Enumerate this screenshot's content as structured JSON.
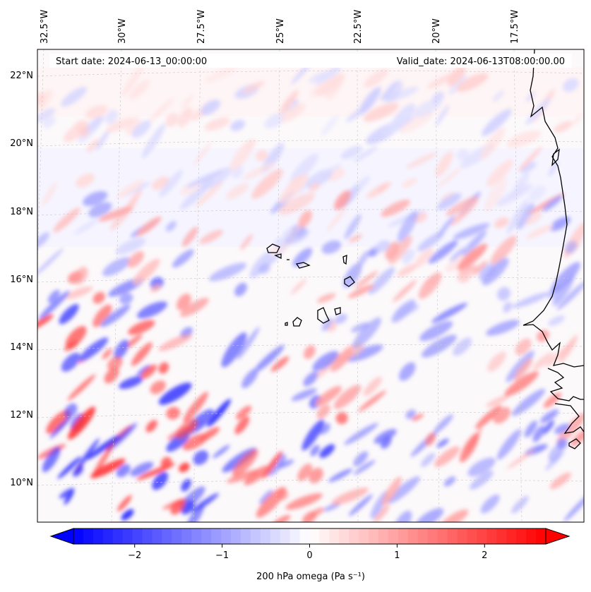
{
  "map": {
    "start_label": "Start date: 2024-06-13_00:00:00",
    "valid_label": "Valid_date: 2024-06-13T08:00:00.00",
    "lon_labels": [
      "32.5°W",
      "30°W",
      "27.5°W",
      "25°W",
      "22.5°W",
      "20°W",
      "17.5°W"
    ],
    "lat_labels": [
      "22°N",
      "20°N",
      "18°N",
      "16°N",
      "14°N",
      "12°N",
      "10°N"
    ],
    "field": "200 hPa omega",
    "projection": "conic (curved parallels)",
    "gridlines": true,
    "coastline_color": "#000000"
  },
  "colorbar": {
    "label": "200 hPa omega (Pa s⁻¹)",
    "ticks": [
      "−2",
      "−1",
      "0",
      "1",
      "2"
    ],
    "tick_values": [
      -2,
      -1,
      0,
      1,
      2
    ],
    "vmin": -2.7,
    "vmax": 2.7,
    "colormap": "bwr",
    "extend": "both",
    "min_color": "#0000ff",
    "mid_color": "#ffffff",
    "max_color": "#ff0000"
  }
}
